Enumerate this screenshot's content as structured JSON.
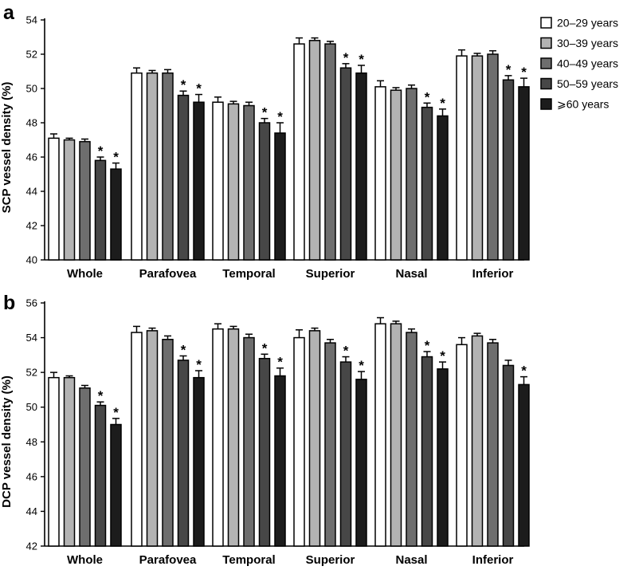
{
  "legend": {
    "entries": [
      {
        "label": "20–29 years",
        "fill": "#ffffff"
      },
      {
        "label": "30–39 years",
        "fill": "#b3b3b3"
      },
      {
        "label": "40–49 years",
        "fill": "#6e6e6e"
      },
      {
        "label": "50–59 years",
        "fill": "#474747"
      },
      {
        "label": "⩾60 years",
        "fill": "#1c1c1c"
      }
    ],
    "placement": "top-right"
  },
  "significance_marker": "*",
  "chart_data": [
    {
      "panel": "a",
      "type": "bar",
      "ylabel": "SCP vessel density (%)",
      "xlabel": "",
      "ylim": [
        40,
        54
      ],
      "yticks": [
        "40",
        "42",
        "44",
        "46",
        "48",
        "50",
        "52",
        "54"
      ],
      "grid": false,
      "categories": [
        "Whole",
        "Parafovea",
        "Temporal",
        "Superior",
        "Nasal",
        "Inferior"
      ],
      "series": [
        {
          "name": "20–29 years",
          "values": [
            47.1,
            50.9,
            49.2,
            52.6,
            50.1,
            51.9
          ],
          "errors": [
            0.25,
            0.3,
            0.3,
            0.35,
            0.35,
            0.35
          ],
          "significant": [
            false,
            false,
            false,
            false,
            false,
            false
          ]
        },
        {
          "name": "30–39 years",
          "values": [
            47.0,
            50.9,
            49.1,
            52.8,
            49.9,
            51.9
          ],
          "errors": [
            0.1,
            0.15,
            0.15,
            0.15,
            0.15,
            0.15
          ],
          "significant": [
            false,
            false,
            false,
            false,
            false,
            false
          ]
        },
        {
          "name": "40–49 years",
          "values": [
            46.9,
            50.9,
            49.0,
            52.6,
            50.0,
            52.0
          ],
          "errors": [
            0.15,
            0.2,
            0.2,
            0.15,
            0.2,
            0.2
          ],
          "significant": [
            false,
            false,
            false,
            false,
            false,
            false
          ]
        },
        {
          "name": "50–59 years",
          "values": [
            45.8,
            49.6,
            48.0,
            51.2,
            48.9,
            50.5
          ],
          "errors": [
            0.2,
            0.25,
            0.25,
            0.25,
            0.25,
            0.25
          ],
          "significant": [
            true,
            true,
            true,
            true,
            true,
            true
          ]
        },
        {
          "name": "⩾60 years",
          "values": [
            45.3,
            49.2,
            47.4,
            50.9,
            48.4,
            50.1
          ],
          "errors": [
            0.35,
            0.45,
            0.6,
            0.45,
            0.4,
            0.5
          ],
          "significant": [
            true,
            true,
            true,
            true,
            true,
            true
          ]
        }
      ]
    },
    {
      "panel": "b",
      "type": "bar",
      "ylabel": "DCP vessel density (%)",
      "xlabel": "",
      "ylim": [
        42,
        56
      ],
      "yticks": [
        "42",
        "44",
        "46",
        "48",
        "50",
        "52",
        "54",
        "56"
      ],
      "grid": false,
      "categories": [
        "Whole",
        "Parafovea",
        "Temporal",
        "Superior",
        "Nasal",
        "Inferior"
      ],
      "series": [
        {
          "name": "20–29 years",
          "values": [
            51.7,
            54.3,
            54.5,
            54.0,
            54.8,
            53.6
          ],
          "errors": [
            0.3,
            0.35,
            0.3,
            0.45,
            0.35,
            0.4
          ],
          "significant": [
            false,
            false,
            false,
            false,
            false,
            false
          ]
        },
        {
          "name": "30–39 years",
          "values": [
            51.7,
            54.4,
            54.5,
            54.4,
            54.8,
            54.1
          ],
          "errors": [
            0.1,
            0.15,
            0.15,
            0.15,
            0.15,
            0.15
          ],
          "significant": [
            false,
            false,
            false,
            false,
            false,
            false
          ]
        },
        {
          "name": "40–49 years",
          "values": [
            51.1,
            53.9,
            54.0,
            53.7,
            54.3,
            53.7
          ],
          "errors": [
            0.15,
            0.2,
            0.2,
            0.2,
            0.2,
            0.2
          ],
          "significant": [
            false,
            false,
            false,
            false,
            false,
            false
          ]
        },
        {
          "name": "50–59 years",
          "values": [
            50.1,
            52.7,
            52.8,
            52.6,
            52.9,
            52.4
          ],
          "errors": [
            0.2,
            0.25,
            0.25,
            0.3,
            0.3,
            0.3
          ],
          "significant": [
            true,
            true,
            true,
            true,
            true,
            false
          ]
        },
        {
          "name": "⩾60 years",
          "values": [
            49.0,
            51.7,
            51.8,
            51.6,
            52.2,
            51.3
          ],
          "errors": [
            0.35,
            0.4,
            0.45,
            0.45,
            0.4,
            0.45
          ],
          "significant": [
            true,
            true,
            true,
            true,
            true,
            true
          ]
        }
      ]
    }
  ]
}
